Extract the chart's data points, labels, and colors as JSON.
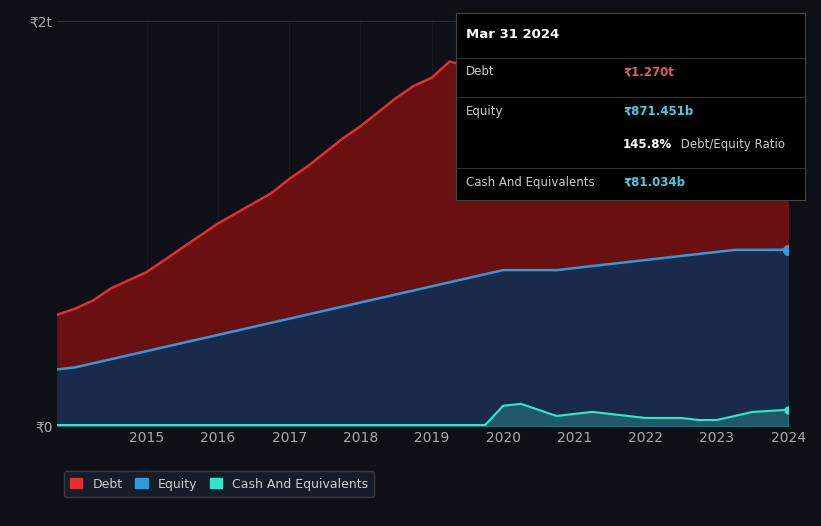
{
  "bg_color": "#0d1117",
  "plot_bg_color": "#0d1117",
  "grid_color": "#2a2f3a",
  "title_box": {
    "date": "Mar 31 2024",
    "debt_label": "Debt",
    "debt_value": "₹1.270t",
    "equity_label": "Equity",
    "equity_value": "₹871.451b",
    "ratio_bold": "145.8%",
    "ratio_text": " Debt/Equity Ratio",
    "cash_label": "Cash And Equivalents",
    "cash_value": "₹81.034b",
    "debt_color": "#e05c5c",
    "equity_color": "#4ec9e1",
    "cash_color": "#4ec9e1",
    "text_color": "#cccccc"
  },
  "years": [
    2013.75,
    2014.0,
    2014.25,
    2014.5,
    2014.75,
    2015.0,
    2015.25,
    2015.5,
    2015.75,
    2016.0,
    2016.25,
    2016.5,
    2016.75,
    2017.0,
    2017.25,
    2017.5,
    2017.75,
    2018.0,
    2018.25,
    2018.5,
    2018.75,
    2019.0,
    2019.25,
    2019.5,
    2019.75,
    2020.0,
    2020.25,
    2020.5,
    2020.75,
    2021.0,
    2021.25,
    2021.5,
    2021.75,
    2022.0,
    2022.25,
    2022.5,
    2022.75,
    2023.0,
    2023.25,
    2023.5,
    2023.75,
    2024.0
  ],
  "debt": [
    0.55,
    0.58,
    0.62,
    0.68,
    0.72,
    0.76,
    0.82,
    0.88,
    0.94,
    1.0,
    1.05,
    1.1,
    1.15,
    1.22,
    1.28,
    1.35,
    1.42,
    1.48,
    1.55,
    1.62,
    1.68,
    1.72,
    1.8,
    1.78,
    1.85,
    1.9,
    1.75,
    1.72,
    1.8,
    1.82,
    1.78,
    1.75,
    1.72,
    1.65,
    1.6,
    1.55,
    1.52,
    1.5,
    1.45,
    1.35,
    1.27,
    1.27
  ],
  "equity": [
    0.28,
    0.29,
    0.31,
    0.33,
    0.35,
    0.37,
    0.39,
    0.41,
    0.43,
    0.45,
    0.47,
    0.49,
    0.51,
    0.53,
    0.55,
    0.57,
    0.59,
    0.61,
    0.63,
    0.65,
    0.67,
    0.69,
    0.71,
    0.73,
    0.75,
    0.77,
    0.77,
    0.77,
    0.77,
    0.78,
    0.79,
    0.8,
    0.81,
    0.82,
    0.83,
    0.84,
    0.85,
    0.86,
    0.87,
    0.87,
    0.87,
    0.871
  ],
  "cash": [
    0.005,
    0.005,
    0.005,
    0.005,
    0.005,
    0.005,
    0.005,
    0.005,
    0.005,
    0.005,
    0.005,
    0.005,
    0.005,
    0.005,
    0.005,
    0.005,
    0.005,
    0.005,
    0.005,
    0.005,
    0.005,
    0.005,
    0.005,
    0.005,
    0.005,
    0.1,
    0.11,
    0.08,
    0.05,
    0.06,
    0.07,
    0.06,
    0.05,
    0.04,
    0.04,
    0.04,
    0.03,
    0.03,
    0.05,
    0.07,
    0.075,
    0.081
  ],
  "debt_color": "#e03030",
  "equity_color": "#3399dd",
  "cash_color": "#2ee8c8",
  "debt_fill": "#6b1010",
  "equity_fill": "#1a2a4a",
  "ylim": [
    0,
    2.0
  ],
  "ytick_labels": [
    "₹0",
    "₹2t"
  ],
  "ytick_values": [
    0,
    2.0
  ],
  "xticks": [
    2015,
    2016,
    2017,
    2018,
    2019,
    2020,
    2021,
    2022,
    2023,
    2024
  ],
  "legend_labels": [
    "Debt",
    "Equity",
    "Cash And Equivalents"
  ],
  "legend_colors": [
    "#e03030",
    "#3399dd",
    "#2ee8c8"
  ]
}
